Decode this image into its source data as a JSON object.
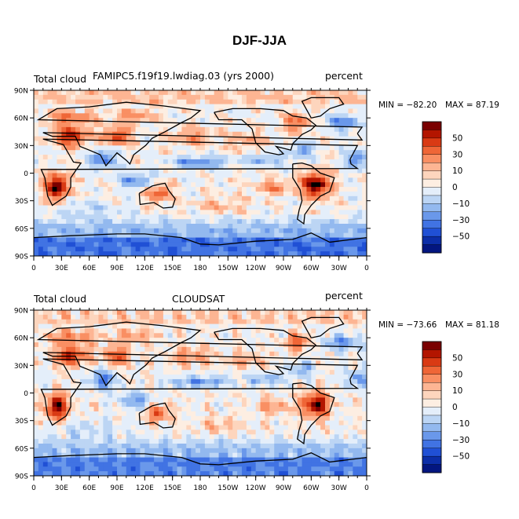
{
  "figure_title": "DJF-JJA",
  "panels": [
    {
      "left_label": "Total cloud",
      "center_label": "FAMIPC5.f19f19.lwdiag.03 (yrs 2000)",
      "right_label": "percent",
      "min_text": "MIN = −82.20",
      "max_text": "MAX =  87.19",
      "min": -82.2,
      "max": 87.19
    },
    {
      "left_label": "Total cloud",
      "center_label": "CLOUDSAT",
      "right_label": "percent",
      "min_text": "MIN = −73.66",
      "max_text": "MAX =  81.18",
      "min": -73.66,
      "max": 81.18
    }
  ],
  "lat_ticks": [
    "90N",
    "60N",
    "30N",
    "0",
    "30S",
    "60S",
    "90S"
  ],
  "lon_ticks": [
    "0",
    "30E",
    "60E",
    "90E",
    "120E",
    "150E",
    "180",
    "150W",
    "120W",
    "90W",
    "60W",
    "30W",
    "0"
  ],
  "colorbar": {
    "labels": [
      "50",
      "30",
      "10",
      "0",
      "−10",
      "−30",
      "−50"
    ],
    "colors": [
      "#7a0000",
      "#b31500",
      "#d93a14",
      "#ef6637",
      "#f98f63",
      "#fdb593",
      "#fdd5bd",
      "#fdeee2",
      "#e4eefa",
      "#bcd5f4",
      "#93b9ef",
      "#6a98ea",
      "#4173e3",
      "#2050d5",
      "#0c2ea8",
      "#031680"
    ]
  },
  "chart_data": {
    "type": "heatmap",
    "title": "DJF-JJA",
    "variable": "Total cloud",
    "units": "percent",
    "xlabel": "",
    "ylabel": "",
    "x_range": [
      "0",
      "0"
    ],
    "y_range": [
      "90S",
      "90N"
    ],
    "contour_levels": [
      -70,
      -60,
      -50,
      -40,
      -30,
      -20,
      -10,
      0,
      5,
      10,
      20,
      30,
      40,
      50,
      60,
      70
    ],
    "series": [
      {
        "name": "FAMIPC5.f19f19.lwdiag.03 (yrs 2000)",
        "min": -82.2,
        "max": 87.19
      },
      {
        "name": "CLOUDSAT",
        "min": -73.66,
        "max": 81.18
      }
    ]
  }
}
